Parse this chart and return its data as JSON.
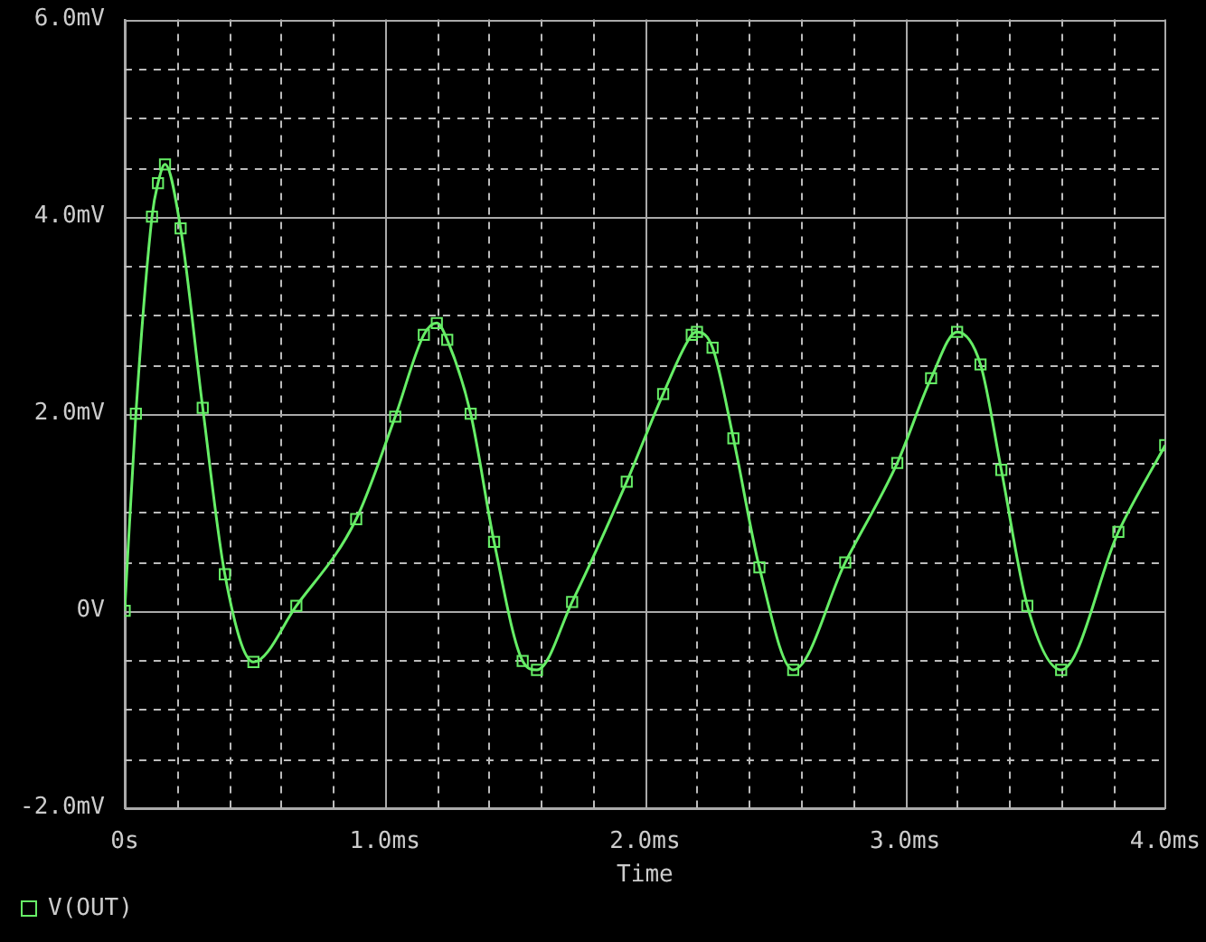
{
  "chart_data": {
    "type": "line",
    "xlabel": "Time",
    "legend": "bottom left",
    "grid": true,
    "marker": "square",
    "line_style": "solid",
    "x": [
      0,
      0.043,
      0.105,
      0.128,
      0.155,
      0.215,
      0.3,
      0.385,
      0.495,
      0.66,
      0.89,
      1.04,
      1.15,
      1.2,
      1.24,
      1.33,
      1.42,
      1.53,
      1.585,
      1.72,
      1.93,
      2.07,
      2.18,
      2.2,
      2.26,
      2.34,
      2.44,
      2.57,
      2.77,
      2.97,
      3.1,
      3.2,
      3.29,
      3.37,
      3.47,
      3.6,
      3.82,
      4.0
    ],
    "xlim": [
      0,
      4
    ],
    "xticks": [
      {
        "value": 0,
        "label": "0s"
      },
      {
        "value": 0.2,
        "label": null
      },
      {
        "value": 0.4,
        "label": null
      },
      {
        "value": 0.6,
        "label": null
      },
      {
        "value": 0.8,
        "label": null
      },
      {
        "value": 1,
        "label": "1.0ms"
      },
      {
        "value": 1.2,
        "label": null
      },
      {
        "value": 1.4,
        "label": null
      },
      {
        "value": 1.6,
        "label": null
      },
      {
        "value": 1.8,
        "label": null
      },
      {
        "value": 2,
        "label": "2.0ms"
      },
      {
        "value": 2.2,
        "label": null
      },
      {
        "value": 2.4,
        "label": null
      },
      {
        "value": 2.6,
        "label": null
      },
      {
        "value": 2.8,
        "label": null
      },
      {
        "value": 3,
        "label": "3.0ms"
      },
      {
        "value": 3.2,
        "label": null
      },
      {
        "value": 3.4,
        "label": null
      },
      {
        "value": 3.6,
        "label": null
      },
      {
        "value": 3.8,
        "label": null
      },
      {
        "value": 4,
        "label": "4.0ms"
      }
    ],
    "ylim": [
      -2,
      6
    ],
    "yticks": [
      {
        "value": -2,
        "label": "-2.0mV"
      },
      {
        "value": -1.5,
        "label": null
      },
      {
        "value": -1,
        "label": null
      },
      {
        "value": -0.5,
        "label": null
      },
      {
        "value": 0,
        "label": "0V"
      },
      {
        "value": 0.5,
        "label": null
      },
      {
        "value": 1,
        "label": null
      },
      {
        "value": 1.5,
        "label": null
      },
      {
        "value": 2,
        "label": "2.0mV"
      },
      {
        "value": 2.5,
        "label": null
      },
      {
        "value": 3,
        "label": null
      },
      {
        "value": 3.5,
        "label": null
      },
      {
        "value": 4,
        "label": "4.0mV"
      },
      {
        "value": 4.5,
        "label": null
      },
      {
        "value": 5,
        "label": null
      },
      {
        "value": 5.5,
        "label": null
      },
      {
        "value": 6,
        "label": "6.0mV"
      }
    ],
    "series": [
      {
        "name": "V(OUT)",
        "color": "#66ee66",
        "values": [
          0,
          2.0,
          4.0,
          4.34,
          4.53,
          3.88,
          2.06,
          0.37,
          -0.52,
          0.05,
          0.93,
          1.97,
          2.8,
          2.92,
          2.75,
          2.0,
          0.7,
          -0.51,
          -0.6,
          0.09,
          1.31,
          2.2,
          2.8,
          2.83,
          2.67,
          1.75,
          0.44,
          -0.6,
          0.49,
          1.5,
          2.36,
          2.83,
          2.5,
          1.43,
          0.05,
          -0.6,
          0.8,
          1.68
        ]
      }
    ]
  }
}
